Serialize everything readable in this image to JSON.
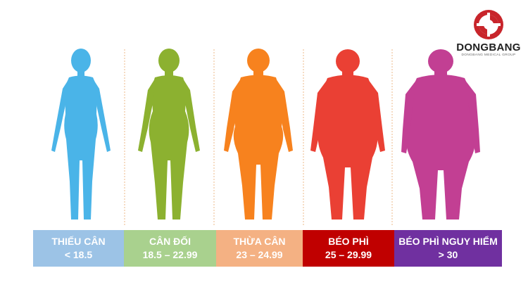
{
  "brand": {
    "name": "DONGBANG",
    "tagline": "DONGBANG MEDICAL GROUP",
    "icon": "dongbang-logo-icon",
    "colors": {
      "mark": "#c8252b",
      "text": "#1f1f1f"
    }
  },
  "categories": [
    {
      "label": "THIẾU CÂN",
      "range": "< 18.5",
      "color": "#9cc3e6",
      "figure_color": "#4ab4e8",
      "figure_size": "underweight"
    },
    {
      "label": "CÂN ĐỐI",
      "range": "18.5 – 22.99",
      "color": "#a9d18e",
      "figure_color": "#8cb130",
      "figure_size": "normal"
    },
    {
      "label": "THỪA CÂN",
      "range": "23 – 24.99",
      "color": "#f4b183",
      "figure_color": "#f7821e",
      "figure_size": "overweight"
    },
    {
      "label": "BÉO PHÌ",
      "range": "25 – 29.99",
      "color": "#c00000",
      "figure_color": "#ea4034",
      "figure_size": "obese"
    },
    {
      "label": "BÉO PHÌ NGUY HIỂM",
      "range": "> 30",
      "color": "#7030a0",
      "figure_color": "#c23f93",
      "figure_size": "severely-obese"
    }
  ]
}
